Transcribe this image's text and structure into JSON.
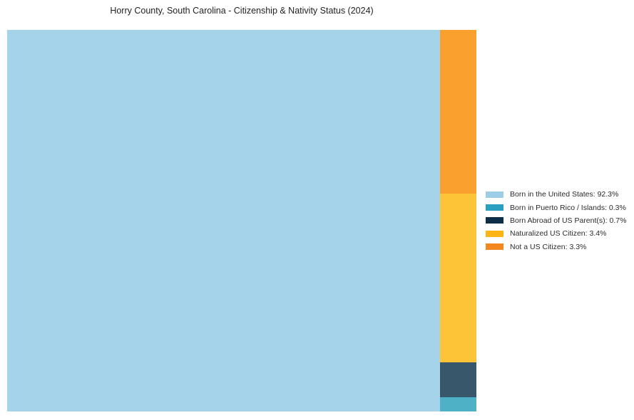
{
  "chart_data": {
    "type": "treemap",
    "title": "Horry County, South Carolina - Citizenship & Nativity Status (2024)",
    "unit": "%",
    "slices": [
      {
        "key": "born-in-us",
        "label": "Born in the United States",
        "value": 92.3,
        "color": "#A5D3EA",
        "legend_color": "#9DCEE8"
      },
      {
        "key": "born-in-pr-islands",
        "label": "Born in Puerto Rico / Islands",
        "value": 0.3,
        "color": "#4FB1C5",
        "legend_color": "#2A9FC0"
      },
      {
        "key": "born-abroad-us-parents",
        "label": "Born Abroad of US Parent(s)",
        "value": 0.7,
        "color": "#39576B",
        "legend_color": "#0D2E48"
      },
      {
        "key": "naturalized-citizen",
        "label": "Naturalized US Citizen",
        "value": 3.4,
        "color": "#FEC438",
        "legend_color": "#FCB315"
      },
      {
        "key": "not-us-citizen",
        "label": "Not a US Citizen",
        "value": 3.3,
        "color": "#F9A02F",
        "legend_color": "#F5871F"
      }
    ],
    "layout": {
      "legend_position": "right",
      "main_cell": "born-in-us",
      "column_order_top_to_bottom": [
        "not-us-citizen",
        "naturalized-citizen",
        "born-abroad-us-parents",
        "born-in-pr-islands"
      ],
      "grid": false
    }
  },
  "legend": {
    "separator": ": ",
    "suffix": "%"
  }
}
